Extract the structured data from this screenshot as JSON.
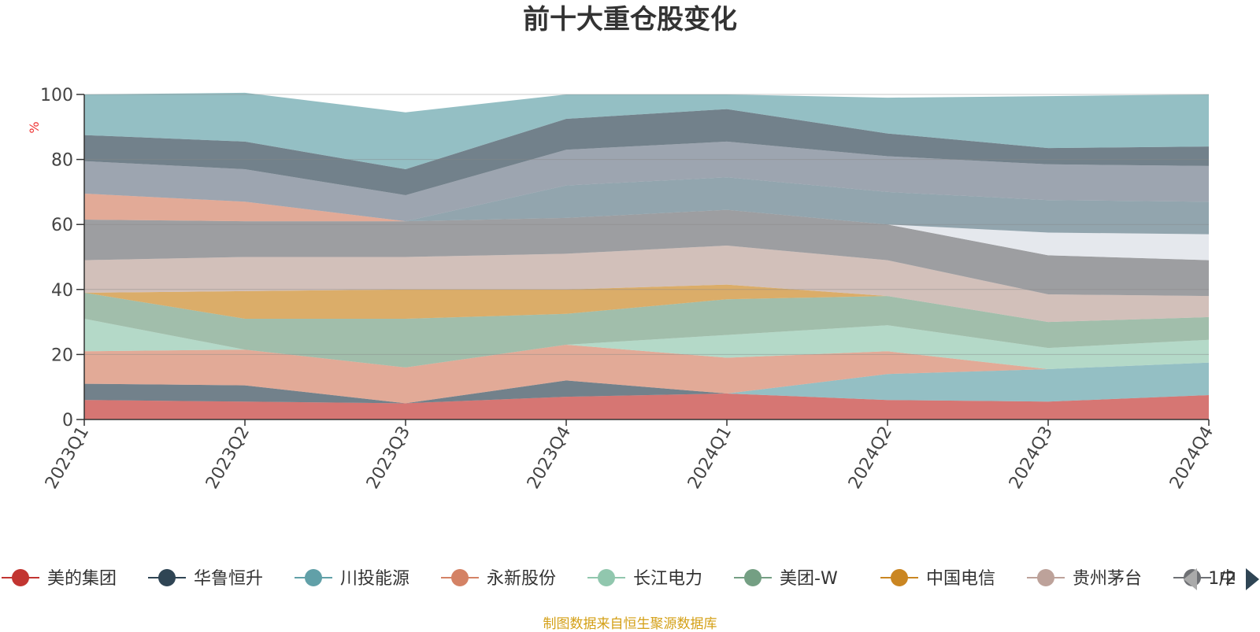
{
  "chart_data": {
    "type": "area",
    "stacked": true,
    "title": "前十大重仓股变化",
    "ylabel": "%",
    "ylim": [
      0,
      100
    ],
    "yticks": [
      0,
      20,
      40,
      60,
      80,
      100
    ],
    "categories": [
      "2023Q1",
      "2023Q2",
      "2023Q3",
      "2023Q4",
      "2024Q1",
      "2024Q2",
      "2024Q3",
      "2024Q4"
    ],
    "grid": true,
    "legend_position": "bottom",
    "legend_page": "1/2",
    "series": [
      {
        "name": "美的集团",
        "color": "#c23531",
        "values": [
          6,
          5.5,
          5,
          7,
          8,
          6,
          5.5,
          7.5
        ]
      },
      {
        "name": "华鲁恒升",
        "color": "#2f4554",
        "values": [
          5,
          5,
          0,
          5,
          0,
          0,
          0,
          0
        ]
      },
      {
        "name": "川投能源",
        "color": "#61a0a8",
        "values": [
          0,
          0,
          0,
          0,
          0,
          8,
          10,
          10
        ]
      },
      {
        "name": "永新股份",
        "color": "#d48265",
        "values": [
          10,
          11,
          11,
          11,
          11,
          7,
          0,
          0
        ]
      },
      {
        "name": "长江电力",
        "color": "#91c7ae",
        "values": [
          10,
          0,
          0,
          0,
          7,
          8,
          6.5,
          7
        ]
      },
      {
        "name": "美团-W",
        "color": "#749f83",
        "values": [
          8,
          9.5,
          15,
          9.5,
          11,
          9,
          8,
          7
        ]
      },
      {
        "name": "中国电信",
        "color": "#ca8622",
        "values": [
          0,
          8.5,
          9,
          7.5,
          4.5,
          0,
          0,
          0
        ]
      },
      {
        "name": "贵州茅台",
        "color": "#bda29a",
        "values": [
          10,
          10.5,
          10,
          11,
          12,
          11,
          8.5,
          6.5
        ]
      },
      {
        "name": "中",
        "color": "#6e7074",
        "values": [
          12.5,
          11,
          11,
          11,
          11,
          11,
          12,
          11
        ]
      },
      {
        "values": [
          0,
          0,
          0,
          0,
          0,
          0,
          7,
          8
        ]
      },
      {
        "values": [
          0,
          0,
          0,
          10,
          10,
          10,
          10,
          10
        ]
      },
      {
        "values": [
          8,
          6,
          0,
          0,
          0,
          0,
          0,
          0
        ]
      },
      {
        "values": [
          10,
          10,
          8,
          11,
          11,
          11,
          11,
          11
        ]
      },
      {
        "values": [
          8,
          8.5,
          8,
          9.5,
          10,
          7,
          5,
          6
        ]
      },
      {
        "values": [
          12.5,
          15,
          17.5,
          7.5,
          4.5,
          11,
          16,
          16
        ]
      }
    ]
  },
  "footer_note": "制图数据来自恒生聚源数据库"
}
